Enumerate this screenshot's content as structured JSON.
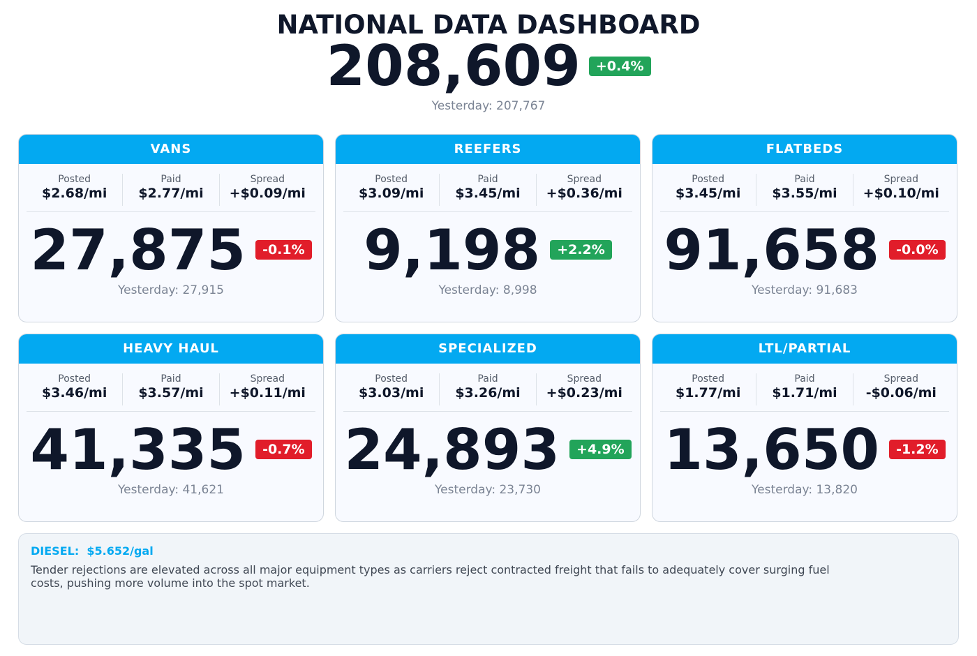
{
  "header": {
    "title": "NATIONAL DATA DASHBOARD",
    "total": "208,609",
    "change": "+0.4%",
    "change_color": "#22a45a",
    "yesterday": "Yesterday: 207,767"
  },
  "cards": [
    {
      "name": "VANS",
      "metrics": [
        {
          "label": "Posted",
          "value": "$2.68/mi"
        },
        {
          "label": "Paid",
          "value": "$2.77/mi"
        },
        {
          "label": "Spread",
          "value": "+$0.09/mi"
        }
      ],
      "count": "27,875",
      "change": "-0.1%",
      "change_color": "#e11d2a",
      "yesterday": "Yesterday: 27,915"
    },
    {
      "name": "REEFERS",
      "metrics": [
        {
          "label": "Posted",
          "value": "$3.09/mi"
        },
        {
          "label": "Paid",
          "value": "$3.45/mi"
        },
        {
          "label": "Spread",
          "value": "+$0.36/mi"
        }
      ],
      "count": "9,198",
      "change": "+2.2%",
      "change_color": "#22a45a",
      "yesterday": "Yesterday: 8,998"
    },
    {
      "name": "FLATBEDS",
      "metrics": [
        {
          "label": "Posted",
          "value": "$3.45/mi"
        },
        {
          "label": "Paid",
          "value": "$3.55/mi"
        },
        {
          "label": "Spread",
          "value": "+$0.10/mi"
        }
      ],
      "count": "91,658",
      "change": "-0.0%",
      "change_color": "#e11d2a",
      "yesterday": "Yesterday: 91,683"
    },
    {
      "name": "HEAVY HAUL",
      "metrics": [
        {
          "label": "Posted",
          "value": "$3.46/mi"
        },
        {
          "label": "Paid",
          "value": "$3.57/mi"
        },
        {
          "label": "Spread",
          "value": "+$0.11/mi"
        }
      ],
      "count": "41,335",
      "change": "-0.7%",
      "change_color": "#e11d2a",
      "yesterday": "Yesterday: 41,621"
    },
    {
      "name": "SPECIALIZED",
      "metrics": [
        {
          "label": "Posted",
          "value": "$3.03/mi"
        },
        {
          "label": "Paid",
          "value": "$3.26/mi"
        },
        {
          "label": "Spread",
          "value": "+$0.23/mi"
        }
      ],
      "count": "24,893",
      "change": "+4.9%",
      "change_color": "#22a45a",
      "yesterday": "Yesterday: 23,730"
    },
    {
      "name": "LTL/PARTIAL",
      "metrics": [
        {
          "label": "Posted",
          "value": "$1.77/mi"
        },
        {
          "label": "Paid",
          "value": "$1.71/mi"
        },
        {
          "label": "Spread",
          "value": "-$0.06/mi"
        }
      ],
      "count": "13,650",
      "change": "-1.2%",
      "change_color": "#e11d2a",
      "yesterday": "Yesterday: 13,820"
    }
  ],
  "footer": {
    "diesel_label": "DIESEL:",
    "diesel": "$5.652/gal",
    "text": "Tender rejections are elevated across all major equipment types as carriers reject contracted freight that fails to adequately cover surging fuel costs, pushing more volume into the spot market."
  }
}
